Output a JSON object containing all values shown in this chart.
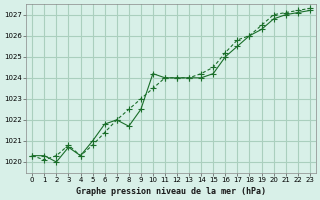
{
  "title": "Graphe pression niveau de la mer (hPa)",
  "bg_color": "#d8f0e8",
  "grid_color": "#aacfbe",
  "line_color": "#1a6e2a",
  "marker_color": "#1a6e2a",
  "ylim": [
    1019.5,
    1027.5
  ],
  "yticks": [
    1020,
    1021,
    1022,
    1023,
    1024,
    1025,
    1026,
    1027
  ],
  "xlim": [
    -0.5,
    23.5
  ],
  "xticks": [
    0,
    1,
    2,
    3,
    4,
    5,
    6,
    7,
    8,
    9,
    10,
    11,
    12,
    13,
    14,
    15,
    16,
    17,
    18,
    19,
    20,
    21,
    22,
    23
  ],
  "series1_x": [
    0,
    1,
    2,
    3,
    4,
    5,
    6,
    7,
    8,
    9,
    10,
    11,
    12,
    13,
    14,
    15,
    16,
    17,
    18,
    19,
    20,
    21,
    22,
    23
  ],
  "series1_y": [
    1020.3,
    1020.3,
    1020.0,
    1020.7,
    1020.3,
    1021.0,
    1021.8,
    1022.0,
    1021.7,
    1022.5,
    1024.2,
    1024.0,
    1024.0,
    1024.0,
    1024.0,
    1024.2,
    1025.0,
    1025.5,
    1026.0,
    1026.3,
    1026.8,
    1027.0,
    1027.1,
    1027.2
  ],
  "series2_x": [
    0,
    1,
    2,
    3,
    4,
    5,
    6,
    7,
    8,
    9,
    10,
    11,
    12,
    13,
    14,
    15,
    16,
    17,
    18,
    19,
    20,
    21,
    22,
    23
  ],
  "series2_y": [
    1020.3,
    1020.1,
    1020.3,
    1020.8,
    1020.3,
    1020.8,
    1021.4,
    1022.0,
    1022.5,
    1023.0,
    1023.5,
    1024.0,
    1024.0,
    1024.0,
    1024.2,
    1024.5,
    1025.2,
    1025.8,
    1026.0,
    1026.5,
    1027.0,
    1027.1,
    1027.2,
    1027.3
  ]
}
